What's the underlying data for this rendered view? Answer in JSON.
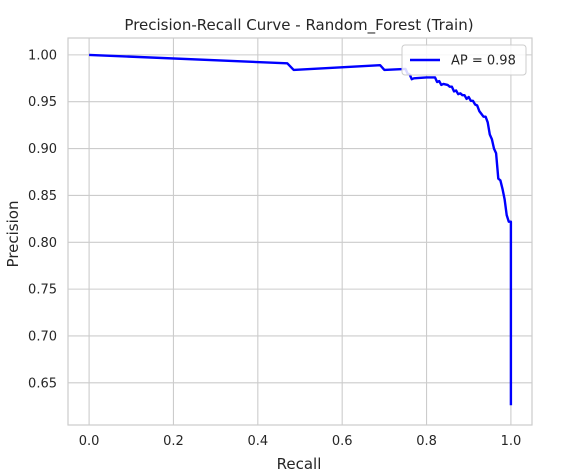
{
  "chart_data": {
    "type": "line",
    "title": "Precision-Recall Curve - Random_Forest (Train)",
    "xlabel": "Recall",
    "ylabel": "Precision",
    "xlim": [
      -0.05,
      1.05
    ],
    "ylim": [
      0.605,
      1.018
    ],
    "xticks": [
      0.0,
      0.2,
      0.4,
      0.6,
      0.8,
      1.0
    ],
    "xtick_labels": [
      "0.0",
      "0.2",
      "0.4",
      "0.6",
      "0.8",
      "1.0"
    ],
    "yticks": [
      0.65,
      0.7,
      0.75,
      0.8,
      0.85,
      0.9,
      0.95,
      1.0
    ],
    "ytick_labels": [
      "0.65",
      "0.70",
      "0.75",
      "0.80",
      "0.85",
      "0.90",
      "0.95",
      "1.00"
    ],
    "grid": true,
    "legend_position": "top-right",
    "series": [
      {
        "name": "AP = 0.98",
        "color": "#0000ff",
        "x": [
          0.0,
          0.47,
          0.485,
          0.69,
          0.7,
          0.75,
          0.755,
          0.76,
          0.765,
          0.77,
          0.8,
          0.82,
          0.825,
          0.83,
          0.835,
          0.84,
          0.85,
          0.855,
          0.86,
          0.865,
          0.87,
          0.875,
          0.88,
          0.885,
          0.89,
          0.895,
          0.9,
          0.905,
          0.91,
          0.915,
          0.92,
          0.925,
          0.93,
          0.935,
          0.94,
          0.945,
          0.95,
          0.955,
          0.96,
          0.965,
          0.97,
          0.975,
          0.98,
          0.985,
          0.99,
          0.995,
          1.0,
          1.0
        ],
        "y": [
          1.0,
          0.991,
          0.984,
          0.989,
          0.984,
          0.985,
          0.98,
          0.979,
          0.974,
          0.975,
          0.976,
          0.976,
          0.971,
          0.972,
          0.968,
          0.969,
          0.968,
          0.966,
          0.966,
          0.961,
          0.962,
          0.958,
          0.959,
          0.957,
          0.957,
          0.953,
          0.955,
          0.951,
          0.951,
          0.947,
          0.946,
          0.94,
          0.937,
          0.934,
          0.934,
          0.928,
          0.915,
          0.91,
          0.9,
          0.895,
          0.868,
          0.866,
          0.857,
          0.846,
          0.829,
          0.822,
          0.822,
          0.626
        ]
      }
    ]
  }
}
